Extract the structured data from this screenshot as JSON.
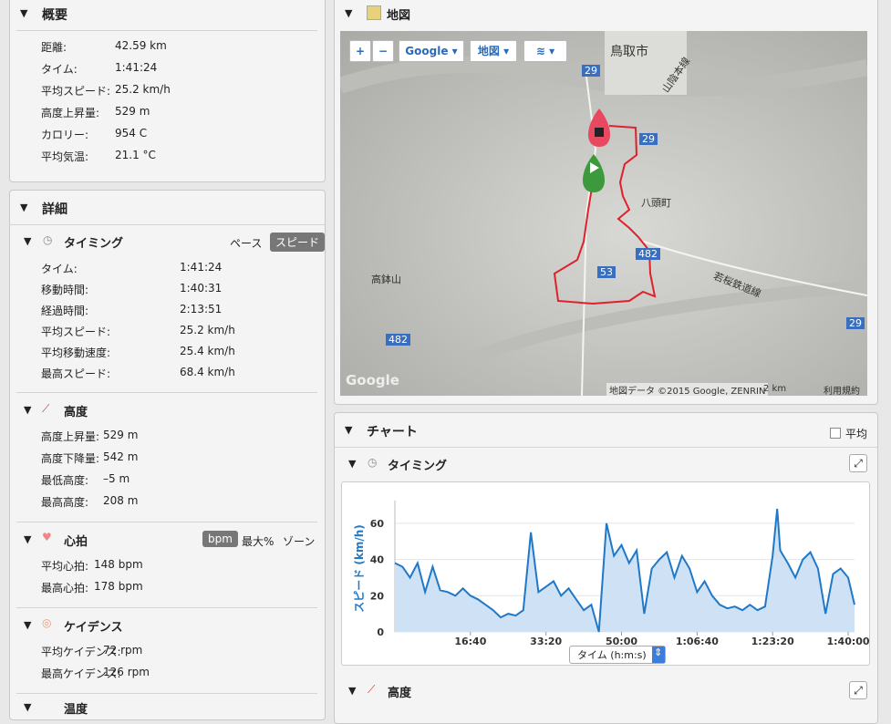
{
  "summary": {
    "title": "概要",
    "rows": [
      [
        "距離:",
        "42.59 km"
      ],
      [
        "タイム:",
        "1:41:24"
      ],
      [
        "平均スピード:",
        "25.2 km/h"
      ],
      [
        "高度上昇量:",
        "529 m"
      ],
      [
        "カロリー:",
        "954 C"
      ],
      [
        "平均気温:",
        "21.1 °C"
      ]
    ]
  },
  "details": {
    "title": "詳細",
    "timing": {
      "title": "タイミング",
      "toggles": [
        "ペース",
        "スピード"
      ],
      "rows": [
        [
          "タイム:",
          "1:41:24"
        ],
        [
          "移動時間:",
          "1:40:31"
        ],
        [
          "経過時間:",
          "2:13:51"
        ],
        [
          "平均スピード:",
          "25.2 km/h"
        ],
        [
          "平均移動速度:",
          "25.4 km/h"
        ],
        [
          "最高スピード:",
          "68.4 km/h"
        ]
      ]
    },
    "altitude": {
      "title": "高度",
      "rows": [
        [
          "高度上昇量:",
          "529 m"
        ],
        [
          "高度下降量:",
          "542 m"
        ],
        [
          "最低高度:",
          "–5 m"
        ],
        [
          "最高高度:",
          "208 m"
        ]
      ]
    },
    "heart_rate": {
      "title": "心拍",
      "toggles": [
        "bpm",
        "最大%",
        "ゾーン"
      ],
      "rows": [
        [
          "平均心拍:",
          "148 bpm"
        ],
        [
          "最高心拍:",
          "178 bpm"
        ]
      ]
    },
    "cadence": {
      "title": "ケイデンス",
      "rows": [
        [
          "平均ケイデンス:",
          "72 rpm"
        ],
        [
          "最高ケイデンス:",
          "126 rpm"
        ]
      ]
    },
    "temperature": {
      "title": "温度"
    }
  },
  "map": {
    "title": "地図",
    "controls": [
      "+",
      "−",
      "Google",
      "地図"
    ],
    "labels": [
      "鳥取市",
      "山陰本線",
      "29",
      "29",
      "八頭町",
      "482",
      "53",
      "若桜鉄道線",
      "高鉢山",
      "482",
      "29"
    ],
    "attribution": "地図データ ©2015 Google, ZENRIN",
    "scale": "2 km",
    "terms": "利用規約",
    "logo": "Google"
  },
  "chart_panel": {
    "title": "チャート",
    "average": "平均",
    "section": "タイミング",
    "x_selector": "タイム (h:m:s)",
    "next_section": "高度"
  },
  "chart_data": {
    "type": "line",
    "y_label": "スピード (km/h)",
    "color": "#1f78c8",
    "fill": "#cfe2f5",
    "grid": true,
    "x": [
      0,
      100,
      200,
      300,
      400,
      500,
      600,
      700,
      800,
      900,
      1000,
      1100,
      1200,
      1300,
      1400,
      1500,
      1600,
      1700,
      1800,
      1900,
      2000,
      2100,
      2200,
      2300,
      2400,
      2500,
      2600,
      2700,
      2800,
      2900,
      3000,
      3100,
      3200,
      3300,
      3400,
      3500,
      3600,
      3700,
      3800,
      3900,
      4000,
      4100,
      4200,
      4300,
      4400,
      4500,
      4600,
      4700,
      4800,
      4900,
      5000,
      5060,
      5100,
      5200,
      5300,
      5400,
      5500,
      5600,
      5700,
      5800,
      5900,
      6000,
      6084
    ],
    "values": [
      38,
      36,
      30,
      38,
      22,
      36,
      23,
      22,
      20,
      24,
      20,
      18,
      15,
      12,
      8,
      10,
      9,
      12,
      55,
      22,
      25,
      28,
      20,
      24,
      18,
      12,
      15,
      0,
      60,
      42,
      48,
      38,
      45,
      10,
      35,
      40,
      44,
      30,
      42,
      35,
      22,
      28,
      20,
      15,
      13,
      14,
      12,
      15,
      12,
      14,
      42,
      68,
      45,
      38,
      30,
      40,
      44,
      35,
      10,
      32,
      35,
      30,
      15
    ],
    "xlim": [
      0,
      6084
    ],
    "ylim": [
      0,
      70
    ],
    "yticks": [
      0,
      20,
      40,
      60
    ],
    "xticks": [
      {
        "value": 1000,
        "label": "16:40"
      },
      {
        "value": 2000,
        "label": "33:20"
      },
      {
        "value": 3000,
        "label": "50:00"
      },
      {
        "value": 4000,
        "label": "1:06:40"
      },
      {
        "value": 5000,
        "label": "1:23:20"
      },
      {
        "value": 6000,
        "label": "1:40:00"
      }
    ]
  }
}
